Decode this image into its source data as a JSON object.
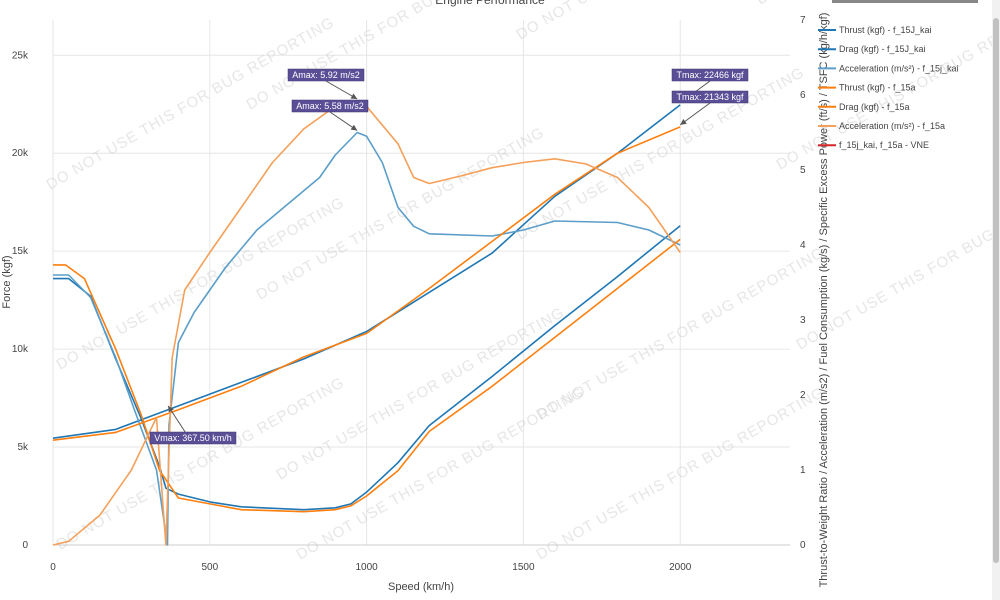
{
  "chart_data": {
    "type": "line",
    "title": "Engine Performance",
    "xlabel": "Speed (km/h)",
    "ylabel": "Force (kgf)",
    "y2label": "Thrust-to-Weight Ratio / Acceleration (m/s2) / Fuel Consumption (kg/s) / Specific Excess Power (ft/s) / TSFC (kg/h/kgf)",
    "xlim": [
      0,
      2350
    ],
    "ylim": [
      0,
      26800
    ],
    "y2lim": [
      0,
      7
    ],
    "xticks": [
      "0",
      "500",
      "1000",
      "1500",
      "2000"
    ],
    "xtick_values": [
      0,
      500,
      1000,
      1500,
      2000
    ],
    "yticks": [
      "0",
      "5k",
      "10k",
      "15k",
      "20k",
      "25k"
    ],
    "ytick_values": [
      0,
      5000,
      10000,
      15000,
      20000,
      25000
    ],
    "y2ticks": [
      "0",
      "1",
      "2",
      "3",
      "4",
      "5",
      "6",
      "7"
    ],
    "y2tick_values": [
      0,
      1,
      2,
      3,
      4,
      5,
      6,
      7
    ],
    "grid": true,
    "legend_position": "top-right",
    "series": [
      {
        "name": "Thrust (kgf) - f_15J_kai",
        "axis": "y",
        "color": "#1f77b4",
        "points": [
          [
            0,
            5450
          ],
          [
            200,
            5900
          ],
          [
            400,
            7100
          ],
          [
            600,
            8300
          ],
          [
            800,
            9500
          ],
          [
            1000,
            10900
          ],
          [
            1200,
            12900
          ],
          [
            1400,
            14900
          ],
          [
            1600,
            17800
          ],
          [
            1800,
            20000
          ],
          [
            2000,
            22466
          ]
        ]
      },
      {
        "name": "Drag (kgf) - f_15J_kai",
        "axis": "y",
        "color": "#1f77b4",
        "points": [
          [
            0,
            13600
          ],
          [
            50,
            13600
          ],
          [
            120,
            12700
          ],
          [
            200,
            9500
          ],
          [
            280,
            6500
          ],
          [
            340,
            4000
          ],
          [
            360,
            2900
          ],
          [
            400,
            2600
          ],
          [
            500,
            2200
          ],
          [
            600,
            1950
          ],
          [
            800,
            1800
          ],
          [
            900,
            1900
          ],
          [
            950,
            2100
          ],
          [
            1000,
            2700
          ],
          [
            1100,
            4200
          ],
          [
            1200,
            6100
          ],
          [
            1400,
            8600
          ],
          [
            1600,
            11200
          ],
          [
            1800,
            13700
          ],
          [
            2000,
            16300
          ]
        ]
      },
      {
        "name": "Acceleration (m/s²) - f_15j_kai",
        "axis": "y2",
        "color": "#5b9ec9",
        "points": [
          [
            0,
            3.6
          ],
          [
            50,
            3.6
          ],
          [
            120,
            3.3
          ],
          [
            200,
            2.5
          ],
          [
            260,
            1.8
          ],
          [
            330,
            1.0
          ],
          [
            365,
            0.0
          ],
          [
            370,
            1.6
          ],
          [
            400,
            2.7
          ],
          [
            450,
            3.1
          ],
          [
            550,
            3.7
          ],
          [
            650,
            4.2
          ],
          [
            750,
            4.55
          ],
          [
            850,
            4.9
          ],
          [
            900,
            5.2
          ],
          [
            970,
            5.5
          ],
          [
            1000,
            5.45
          ],
          [
            1050,
            5.1
          ],
          [
            1100,
            4.5
          ],
          [
            1150,
            4.25
          ],
          [
            1200,
            4.15
          ],
          [
            1400,
            4.12
          ],
          [
            1500,
            4.2
          ],
          [
            1600,
            4.32
          ],
          [
            1800,
            4.3
          ],
          [
            1900,
            4.2
          ],
          [
            2000,
            4.0
          ]
        ]
      },
      {
        "name": "Thrust (kgf) - f_15a",
        "axis": "y",
        "color": "#ff7f0e",
        "points": [
          [
            0,
            5350
          ],
          [
            200,
            5750
          ],
          [
            400,
            6900
          ],
          [
            600,
            8100
          ],
          [
            800,
            9600
          ],
          [
            1000,
            10800
          ],
          [
            1200,
            13100
          ],
          [
            1400,
            15500
          ],
          [
            1600,
            17900
          ],
          [
            1800,
            20000
          ],
          [
            2000,
            21343
          ]
        ]
      },
      {
        "name": "Drag (kgf) - f_15a",
        "axis": "y",
        "color": "#ff7f0e",
        "points": [
          [
            0,
            14300
          ],
          [
            40,
            14300
          ],
          [
            100,
            13600
          ],
          [
            200,
            10000
          ],
          [
            280,
            6700
          ],
          [
            340,
            3800
          ],
          [
            400,
            2400
          ],
          [
            500,
            2100
          ],
          [
            600,
            1800
          ],
          [
            800,
            1700
          ],
          [
            900,
            1800
          ],
          [
            950,
            2000
          ],
          [
            1000,
            2500
          ],
          [
            1100,
            3800
          ],
          [
            1200,
            5800
          ],
          [
            1400,
            8100
          ],
          [
            1600,
            10600
          ],
          [
            1800,
            13100
          ],
          [
            2000,
            15600
          ]
        ]
      },
      {
        "name": "Acceleration (m/s²) - f_15a",
        "axis": "y2",
        "color": "#f5a05a",
        "points": [
          [
            0,
            0.0
          ],
          [
            50,
            0.05
          ],
          [
            150,
            0.4
          ],
          [
            250,
            1.0
          ],
          [
            330,
            1.7
          ],
          [
            360,
            0.0
          ],
          [
            380,
            2.5
          ],
          [
            420,
            3.4
          ],
          [
            500,
            3.9
          ],
          [
            600,
            4.5
          ],
          [
            700,
            5.1
          ],
          [
            800,
            5.55
          ],
          [
            900,
            5.85
          ],
          [
            970,
            5.92
          ],
          [
            1000,
            5.85
          ],
          [
            1100,
            5.35
          ],
          [
            1150,
            4.9
          ],
          [
            1200,
            4.82
          ],
          [
            1300,
            4.92
          ],
          [
            1400,
            5.03
          ],
          [
            1500,
            5.1
          ],
          [
            1600,
            5.15
          ],
          [
            1700,
            5.08
          ],
          [
            1800,
            4.9
          ],
          [
            1900,
            4.5
          ],
          [
            2000,
            3.9
          ]
        ]
      },
      {
        "name": "f_15j_kai, f_15a - VNE",
        "axis": "y",
        "color": "#d62728",
        "points": []
      }
    ],
    "annotations": [
      {
        "text": "Amax: 5.92 m/s2",
        "x": 970,
        "y": 5.92,
        "axis": "y2"
      },
      {
        "text": "Amax: 5.58 m/s2",
        "x": 970,
        "y": 5.5,
        "axis": "y2"
      },
      {
        "text": "Tmax: 22466 kgf",
        "x": 2000,
        "y": 22466,
        "axis": "y"
      },
      {
        "text": "Tmax: 21343 kgf",
        "x": 2000,
        "y": 21343,
        "axis": "y"
      },
      {
        "text": "Vmax: 367.50 km/h",
        "x": 367,
        "y": 7000,
        "axis": "y"
      }
    ],
    "watermark": "DO NOT USE THIS FOR BUG REPORTING"
  }
}
